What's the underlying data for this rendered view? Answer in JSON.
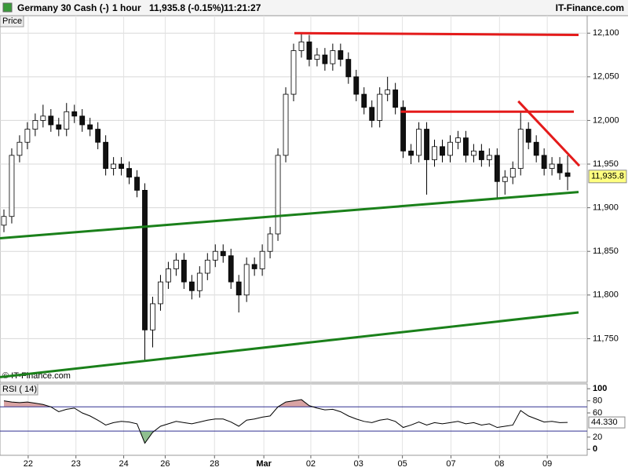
{
  "chart_data": {
    "type": "candlestick",
    "title": "Germany 30 Cash (-)",
    "interval": "1 hour",
    "quote": "11,935.8 (-0.15%)",
    "time": "11:21:27",
    "brand": "IT-Finance.com",
    "y_label": "Price",
    "copyright": "© IT-Finance.com",
    "up_color": "#ffffff",
    "down_color": "#111111",
    "grid": true,
    "xlim": [
      0,
      75
    ],
    "xticks": [
      {
        "value": 3.6,
        "label": "22"
      },
      {
        "value": 9.7,
        "label": "23"
      },
      {
        "value": 15.8,
        "label": "24"
      },
      {
        "value": 21.1,
        "label": "26"
      },
      {
        "value": 27.4,
        "label": "28"
      },
      {
        "value": 33.7,
        "label": "Mar"
      },
      {
        "value": 39.7,
        "label": "02"
      },
      {
        "value": 45.8,
        "label": "03"
      },
      {
        "value": 51.4,
        "label": "05"
      },
      {
        "value": 57.6,
        "label": "07"
      },
      {
        "value": 63.8,
        "label": "08"
      },
      {
        "value": 69.9,
        "label": "09"
      }
    ],
    "ylim": [
      11700,
      12120
    ],
    "yticks": [
      {
        "value": 11750,
        "label": "11,750"
      },
      {
        "value": 11800,
        "label": "11,800"
      },
      {
        "value": 11850,
        "label": "11,850"
      },
      {
        "value": 11900,
        "label": "11,900"
      },
      {
        "value": 11950,
        "label": "11,950"
      },
      {
        "value": 12000,
        "label": "12,000"
      },
      {
        "value": 12050,
        "label": "12,050"
      },
      {
        "value": 12100,
        "label": "12,100"
      }
    ],
    "x": [
      0.5,
      1.5,
      2.5,
      3.5,
      4.5,
      5.5,
      6.5,
      7.5,
      8.5,
      9.5,
      10.5,
      11.5,
      12.5,
      13.5,
      14.5,
      15.5,
      16.5,
      17.5,
      18.5,
      19.5,
      20.5,
      21.5,
      22.5,
      23.5,
      24.5,
      25.5,
      26.5,
      27.5,
      28.5,
      29.5,
      30.5,
      31.5,
      32.5,
      33.5,
      34.5,
      35.5,
      36.5,
      37.5,
      38.5,
      39.5,
      40.5,
      41.5,
      42.5,
      43.5,
      44.5,
      45.5,
      46.5,
      47.5,
      48.5,
      49.5,
      50.5,
      51.5,
      52.5,
      53.5,
      54.5,
      55.5,
      56.5,
      57.5,
      58.5,
      59.5,
      60.5,
      61.5,
      62.5,
      63.5,
      64.5,
      65.5,
      66.5,
      67.5,
      68.5,
      69.5,
      70.5,
      71.5,
      72.5
    ],
    "open": [
      11880,
      11890,
      11960,
      11975,
      11990,
      12000,
      12005,
      11995,
      11990,
      12010,
      12005,
      11995,
      11990,
      11975,
      11945,
      11950,
      11945,
      11935,
      11920,
      11760,
      11790,
      11815,
      11830,
      11840,
      11815,
      11805,
      11825,
      11840,
      11850,
      11845,
      11815,
      11800,
      11835,
      11830,
      11850,
      11870,
      11960,
      12030,
      12080,
      12090,
      12070,
      12075,
      12065,
      12080,
      12070,
      12050,
      12030,
      12015,
      12000,
      12030,
      12035,
      12015,
      11965,
      11960,
      11990,
      11955,
      11970,
      11960,
      11975,
      11980,
      11960,
      11965,
      11955,
      11960,
      11930,
      11935,
      11945,
      11990,
      11975,
      11960,
      11945,
      11950,
      11940
    ],
    "high": [
      11898,
      11968,
      11983,
      11998,
      12008,
      12018,
      12013,
      12003,
      12020,
      12018,
      12013,
      12003,
      11998,
      11983,
      11958,
      11958,
      11953,
      11943,
      11928,
      11798,
      11823,
      11838,
      11848,
      11848,
      11823,
      11833,
      11848,
      11858,
      11858,
      11853,
      11823,
      11843,
      11843,
      11858,
      11878,
      11968,
      12038,
      12088,
      12100,
      12098,
      12083,
      12083,
      12088,
      12088,
      12078,
      12058,
      12038,
      12023,
      12038,
      12050,
      12043,
      12023,
      11973,
      11998,
      11998,
      11978,
      11978,
      11983,
      11988,
      11988,
      11973,
      11973,
      11968,
      11968,
      11943,
      11953,
      12010,
      11998,
      11983,
      11968,
      11958,
      11958,
      11960
    ],
    "low": [
      11872,
      11882,
      11952,
      11967,
      11982,
      11992,
      11987,
      11982,
      11982,
      11997,
      11987,
      11982,
      11967,
      11937,
      11937,
      11937,
      11927,
      11912,
      11725,
      11740,
      11782,
      11807,
      11822,
      11807,
      11795,
      11797,
      11817,
      11832,
      11837,
      11807,
      11780,
      11792,
      11822,
      11822,
      11842,
      11862,
      11952,
      12022,
      12072,
      12062,
      12062,
      12057,
      12057,
      12062,
      12042,
      12022,
      12007,
      11992,
      11992,
      12022,
      12007,
      11957,
      11950,
      11952,
      11915,
      11947,
      11952,
      11952,
      11967,
      11952,
      11952,
      11947,
      11947,
      11910,
      11915,
      11927,
      11937,
      11967,
      11952,
      11937,
      11937,
      11932,
      11920
    ],
    "close": [
      11890,
      11960,
      11975,
      11990,
      12000,
      12005,
      11995,
      11990,
      12010,
      12005,
      11995,
      11990,
      11975,
      11945,
      11950,
      11945,
      11935,
      11920,
      11760,
      11790,
      11815,
      11830,
      11840,
      11815,
      11805,
      11825,
      11840,
      11850,
      11845,
      11815,
      11800,
      11835,
      11830,
      11850,
      11870,
      11960,
      12030,
      12080,
      12090,
      12070,
      12075,
      12065,
      12080,
      12070,
      12050,
      12030,
      12015,
      12000,
      12030,
      12035,
      12015,
      11965,
      11960,
      11990,
      11955,
      11970,
      11960,
      11975,
      11980,
      11960,
      11965,
      11955,
      11960,
      11930,
      11935,
      11945,
      11990,
      11975,
      11960,
      11945,
      11950,
      11940,
      11935.8
    ],
    "last_price": {
      "value": 11935.8,
      "label": "11,935.8"
    },
    "last_price_color": "#ffff80",
    "trendlines": [
      {
        "color": "#e41a1a",
        "x": [
          37.6,
          73.9
        ],
        "y": [
          12100,
          12098
        ]
      },
      {
        "color": "#e41a1a",
        "x": [
          51.2,
          73.3
        ],
        "y": [
          12010,
          12010
        ]
      },
      {
        "color": "#e41a1a",
        "x": [
          66.2,
          74.0
        ],
        "y": [
          12022,
          11948
        ]
      },
      {
        "color": "#1a801a",
        "x": [
          0,
          73.9
        ],
        "y": [
          11865,
          11918
        ]
      },
      {
        "color": "#1a801a",
        "x": [
          0,
          73.9
        ],
        "y": [
          11706,
          11780
        ]
      }
    ],
    "indicator": {
      "type": "line",
      "name": "RSI ( 14)",
      "color": "#000000",
      "values": [
        80,
        78,
        77,
        78,
        76,
        74,
        70,
        62,
        66,
        68,
        60,
        55,
        48,
        40,
        44,
        46,
        45,
        42,
        10,
        28,
        38,
        42,
        46,
        44,
        42,
        45,
        48,
        50,
        50,
        45,
        38,
        48,
        50,
        53,
        55,
        70,
        78,
        80,
        82,
        72,
        68,
        65,
        66,
        62,
        55,
        50,
        46,
        44,
        48,
        50,
        46,
        36,
        40,
        45,
        40,
        44,
        42,
        44,
        46,
        42,
        44,
        40,
        42,
        36,
        38,
        40,
        64,
        55,
        50,
        45,
        46,
        44,
        44.33
      ],
      "ylim": [
        -10,
        108
      ],
      "yticks": [
        0,
        20,
        60,
        80,
        100
      ],
      "levels": [
        70,
        30
      ],
      "level_color": "#303090",
      "last": {
        "value": 44.33,
        "label": "44.330"
      }
    }
  }
}
